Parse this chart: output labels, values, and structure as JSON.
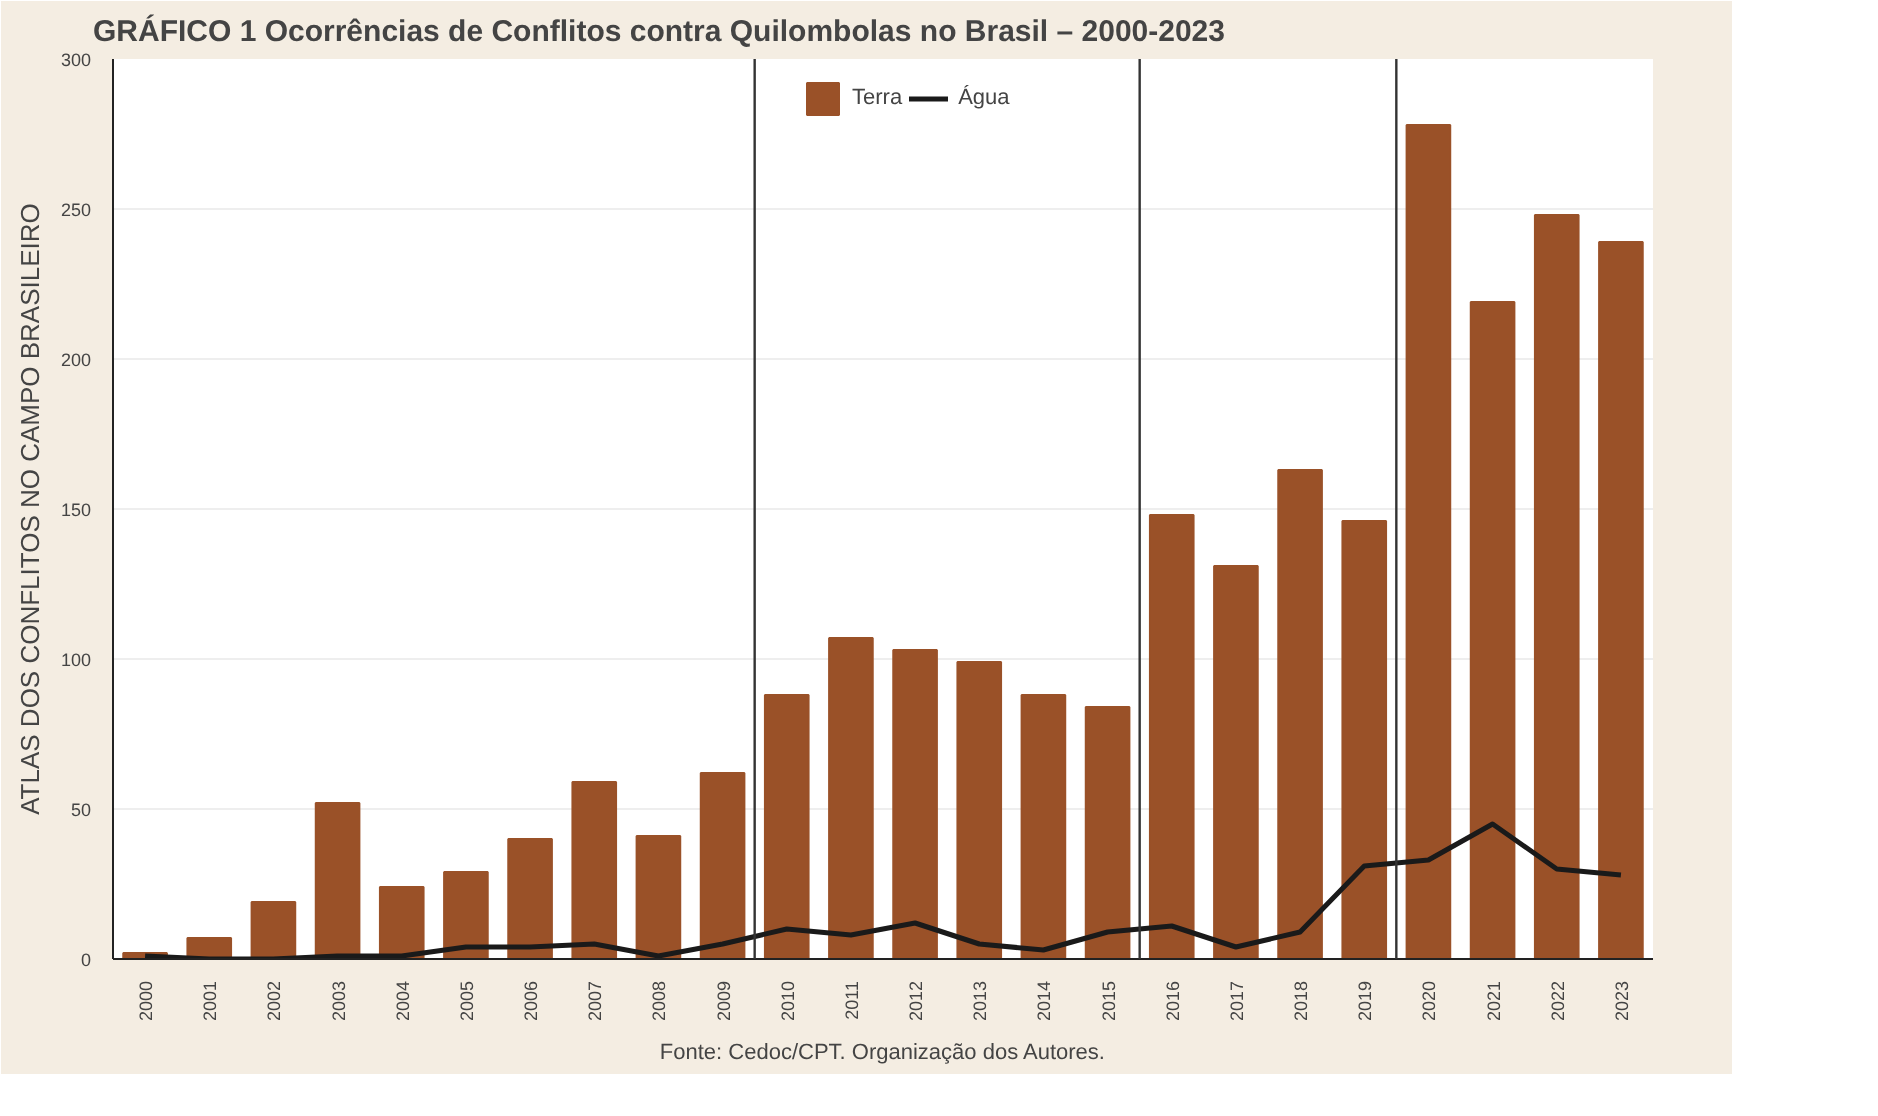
{
  "chart_data": {
    "type": "bar",
    "title": "GRÁFICO 1 Ocorrências de Conflitos contra Quilombolas no Brasil – 2000-2023",
    "x": [
      2000,
      2001,
      2002,
      2003,
      2004,
      2005,
      2006,
      2007,
      2008,
      2009,
      2010,
      2011,
      2012,
      2013,
      2014,
      2015,
      2016,
      2017,
      2018,
      2019,
      2020,
      2021,
      2022,
      2023
    ],
    "xlim": [
      1999.5,
      2023.5
    ],
    "xticks": [
      2000,
      2001,
      2002,
      2003,
      2004,
      2005,
      2006,
      2007,
      2008,
      2009,
      2010,
      2011,
      2012,
      2013,
      2014,
      2015,
      2016,
      2017,
      2018,
      2019,
      2020,
      2021,
      2022,
      2023
    ],
    "ylim": [
      0,
      300
    ],
    "yticks": [
      0,
      50,
      100,
      150,
      200,
      250,
      300
    ],
    "series": [
      {
        "name": "Terra",
        "color": "#9a5128",
        "values": [
          2,
          7,
          19,
          52,
          24,
          29,
          40,
          59,
          41,
          62,
          88,
          107,
          103,
          99,
          88,
          84,
          148,
          131,
          163,
          146,
          278,
          219,
          248,
          239
        ]
      },
      {
        "name": "Água",
        "type": "line",
        "color": "#1a1a1a",
        "values": [
          1,
          0,
          0,
          1,
          1,
          4,
          4,
          5,
          1,
          5,
          10,
          8,
          12,
          5,
          3,
          9,
          11,
          4,
          9,
          31,
          33,
          45,
          30,
          28
        ]
      }
    ],
    "ref_lines": [
      {
        "axis": "x",
        "value": 2009.5,
        "color": "#333333"
      },
      {
        "axis": "x",
        "value": 2015.5,
        "color": "#333333"
      },
      {
        "axis": "x",
        "value": 2019.5,
        "color": "#333333"
      }
    ],
    "grid": "y",
    "legend": "top",
    "annotations": [
      "ATLAS DOS CONFLITOS NO CAMPO BRASILEIRO",
      "Fonte: Cedoc/CPT. Organização dos Autores."
    ]
  }
}
